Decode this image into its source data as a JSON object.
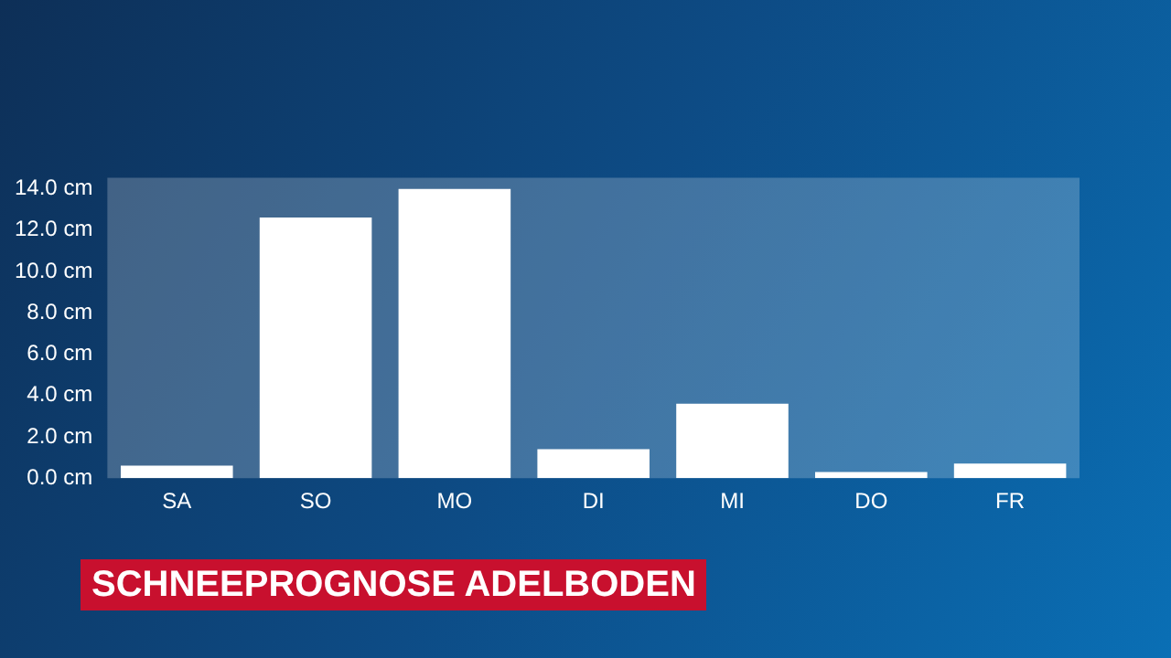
{
  "chart_data": {
    "type": "bar",
    "title": "SCHNEEPROGNOSE ADELBODEN",
    "categories": [
      "SA",
      "SO",
      "MO",
      "DI",
      "MI",
      "DO",
      "FR"
    ],
    "values": [
      0.6,
      12.6,
      14.0,
      1.4,
      3.6,
      0.3,
      0.7
    ],
    "color": "#ffffff",
    "ylim": [
      0,
      14
    ],
    "yticks": [
      {
        "value": 0,
        "label": "0.0 cm"
      },
      {
        "value": 2,
        "label": "2.0 cm"
      },
      {
        "value": 4,
        "label": "4.0 cm"
      },
      {
        "value": 6,
        "label": "6.0 cm"
      },
      {
        "value": 8,
        "label": "8.0 cm"
      },
      {
        "value": 10,
        "label": "10.0 cm"
      },
      {
        "value": 12,
        "label": "12.0 cm"
      },
      {
        "value": 14,
        "label": "14.0 cm"
      }
    ],
    "grid": false,
    "legend": false
  }
}
